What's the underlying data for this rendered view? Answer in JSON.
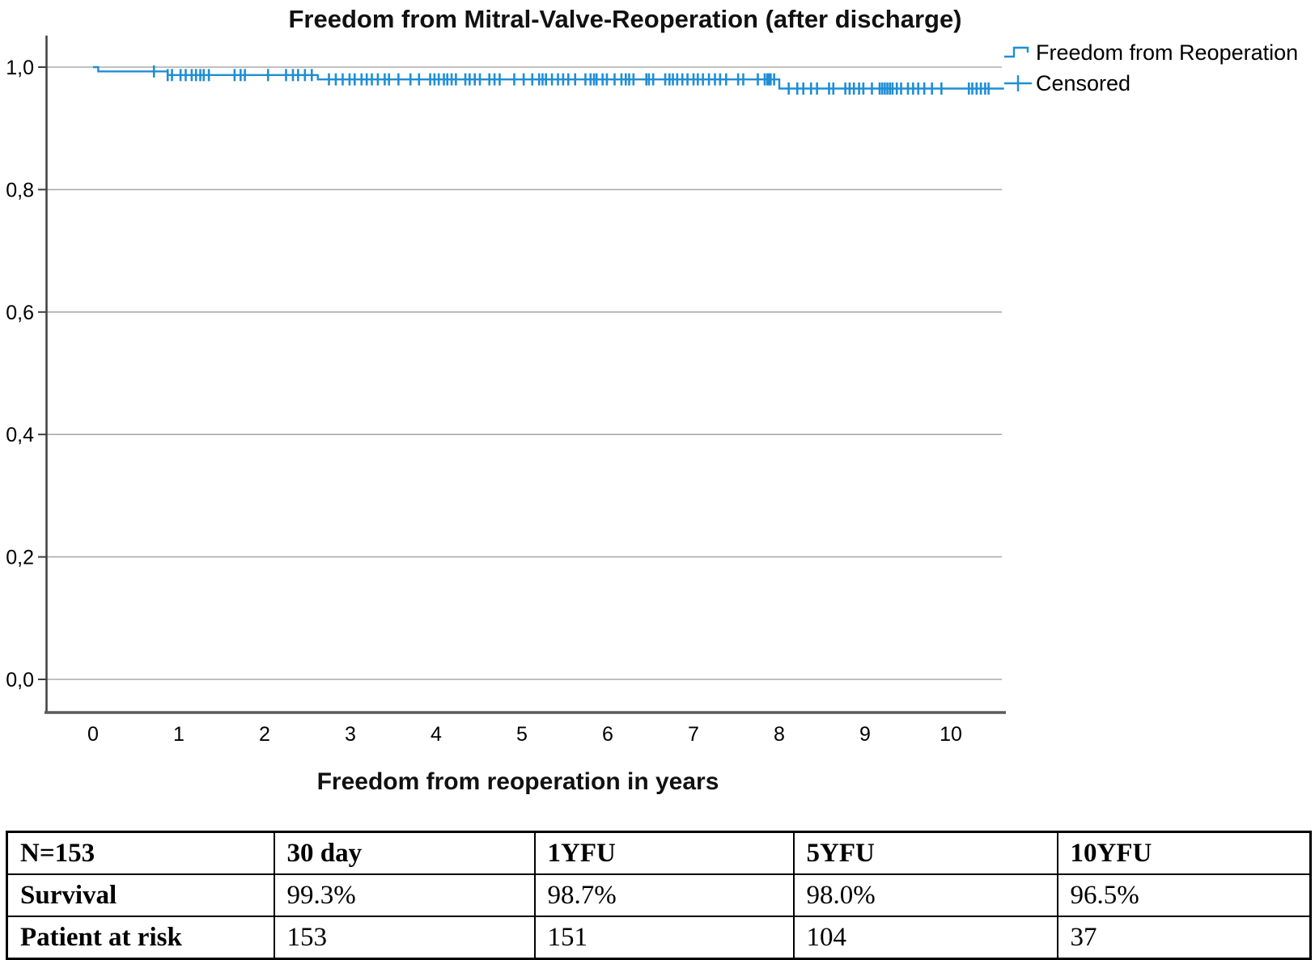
{
  "chart": {
    "title": "Freedom from Mitral-Valve-Reoperation (after discharge)",
    "xlabel": "Freedom from reoperation in years",
    "legend_series_label": "Freedom from Reoperation",
    "legend_censored_label": "Censored"
  },
  "chart_data": {
    "type": "line",
    "subtype": "kaplan-meier-step-function",
    "title": "Freedom from Mitral-Valve-Reoperation (after discharge)",
    "xlabel": "Freedom from reoperation in years",
    "ylabel": "",
    "xlim": [
      -0.55,
      10.64
    ],
    "ylim": [
      -0.05,
      1.05
    ],
    "grid": true,
    "legend_position": "top-right-outside",
    "legend": [
      "Freedom from Reoperation",
      "Censored"
    ],
    "x_ticks": [
      0,
      1,
      2,
      3,
      4,
      5,
      6,
      7,
      8,
      9,
      10
    ],
    "y_ticks": [
      "0,0",
      "0,2",
      "0,4",
      "0,6",
      "0,8",
      "1,0"
    ],
    "y_tick_values": [
      0.0,
      0.2,
      0.4,
      0.6,
      0.8,
      1.0
    ],
    "series": [
      {
        "name": "Freedom from Reoperation",
        "steps": [
          {
            "time": 0.0,
            "survival": 1.0
          },
          {
            "time": 0.06,
            "survival": 0.993
          },
          {
            "time": 0.87,
            "survival": 0.987
          },
          {
            "time": 2.62,
            "survival": 0.98
          },
          {
            "time": 8.0,
            "survival": 0.965
          }
        ],
        "end_time": 10.62
      }
    ],
    "censored_times": [
      0.71,
      0.87,
      0.92,
      1.02,
      1.08,
      1.15,
      1.2,
      1.25,
      1.29,
      1.35,
      1.65,
      1.72,
      1.77,
      2.04,
      2.25,
      2.33,
      2.39,
      2.47,
      2.55,
      2.75,
      2.83,
      2.91,
      2.99,
      3.05,
      3.13,
      3.19,
      3.25,
      3.32,
      3.4,
      3.45,
      3.56,
      3.7,
      3.8,
      3.93,
      3.98,
      4.03,
      4.09,
      4.13,
      4.18,
      4.23,
      4.34,
      4.39,
      4.45,
      4.51,
      4.62,
      4.68,
      4.74,
      4.91,
      5.02,
      5.12,
      5.2,
      5.24,
      5.28,
      5.35,
      5.42,
      5.48,
      5.54,
      5.62,
      5.74,
      5.8,
      5.84,
      5.87,
      5.94,
      5.99,
      6.08,
      6.16,
      6.21,
      6.25,
      6.3,
      6.45,
      6.48,
      6.53,
      6.67,
      6.72,
      6.76,
      6.81,
      6.87,
      6.93,
      7.0,
      7.05,
      7.11,
      7.18,
      7.25,
      7.31,
      7.38,
      7.52,
      7.58,
      7.75,
      7.83,
      7.86,
      7.88,
      7.9,
      7.94,
      8.11,
      8.21,
      8.28,
      8.37,
      8.44,
      8.58,
      8.63,
      8.77,
      8.82,
      8.87,
      8.93,
      8.98,
      9.08,
      9.17,
      9.2,
      9.23,
      9.26,
      9.29,
      9.32,
      9.37,
      9.42,
      9.5,
      9.56,
      9.62,
      9.69,
      9.78,
      9.89,
      10.21,
      10.25,
      10.3,
      10.35,
      10.4,
      10.44
    ],
    "colors": {
      "curve": "#1f8ed4",
      "grid": "#ababab",
      "axis": "#3f3f3f",
      "axis_bottom": "#5a5a5a",
      "text": "#000000"
    }
  },
  "table": {
    "rows": [
      [
        "N=153",
        "30 day",
        "1YFU",
        "5YFU",
        "10YFU"
      ],
      [
        "Survival",
        "99.3%",
        "98.7%",
        "98.0%",
        "96.5%"
      ],
      [
        "Patient at risk",
        "153",
        "151",
        "104",
        "37"
      ]
    ]
  }
}
